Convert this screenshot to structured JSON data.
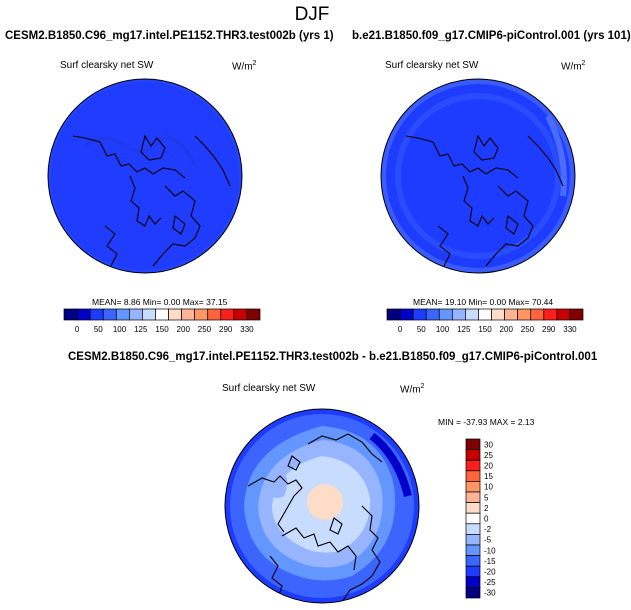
{
  "title": "DJF",
  "panels": [
    {
      "case": "CESM2.B1850.C96_mg17.intel.PE1152.THR3.test002b (yrs 1)",
      "variable": "Surf clearsky net SW",
      "units_base": "W/m",
      "units_exp": "2",
      "stats_text": "MEAN=  8.86  Min=  0.00  Max=  37.15",
      "colorbar": {
        "colors": [
          "#000080",
          "#0000c8",
          "#1e3cff",
          "#3c64ff",
          "#6496ff",
          "#96b4ff",
          "#c8dcff",
          "#ffffff",
          "#ffdcc8",
          "#ffb496",
          "#ff9664",
          "#ff643c",
          "#ff1e1e",
          "#c80000",
          "#800000"
        ],
        "labels": [
          "0",
          "50",
          "100",
          "125",
          "150",
          "200",
          "250",
          "290",
          "330"
        ]
      }
    },
    {
      "case": "b.e21.B1850.f09_g17.CMIP6-piControl.001 (yrs 101)",
      "variable": "Surf clearsky net SW",
      "units_base": "W/m",
      "units_exp": "2",
      "stats_text": "MEAN=  19.10  Min=  0.00  Max=  70.44",
      "colorbar": {
        "colors": [
          "#000080",
          "#0000c8",
          "#1e3cff",
          "#3c64ff",
          "#6496ff",
          "#96b4ff",
          "#c8dcff",
          "#ffffff",
          "#ffdcc8",
          "#ffb496",
          "#ff9664",
          "#ff643c",
          "#ff1e1e",
          "#c80000",
          "#800000"
        ],
        "labels": [
          "0",
          "50",
          "100",
          "125",
          "150",
          "200",
          "250",
          "290",
          "330"
        ]
      }
    }
  ],
  "difference": {
    "case": "CESM2.B1850.C96_mg17.intel.PE1152.THR3.test002b - b.e21.B1850.f09_g17.CMIP6-piControl.001",
    "variable": "Surf clearsky net SW",
    "units_base": "W/m",
    "units_exp": "2",
    "stats_text": "MIN = -37.93  MAX =   2.13",
    "colorbar": {
      "colors_top_to_bottom": [
        "#800000",
        "#c80000",
        "#ff1e1e",
        "#ff643c",
        "#ff9664",
        "#ffb496",
        "#ffdcc8",
        "#ffffff",
        "#c8dcff",
        "#96b4ff",
        "#6496ff",
        "#3c64ff",
        "#1e3cff",
        "#0000c8",
        "#000080"
      ],
      "labels_top_to_bottom": [
        "30",
        "25",
        "20",
        "15",
        "10",
        "5",
        "2",
        "0",
        "-2",
        "-5",
        "-10",
        "-15",
        "-20",
        "-25",
        "-30"
      ]
    }
  }
}
